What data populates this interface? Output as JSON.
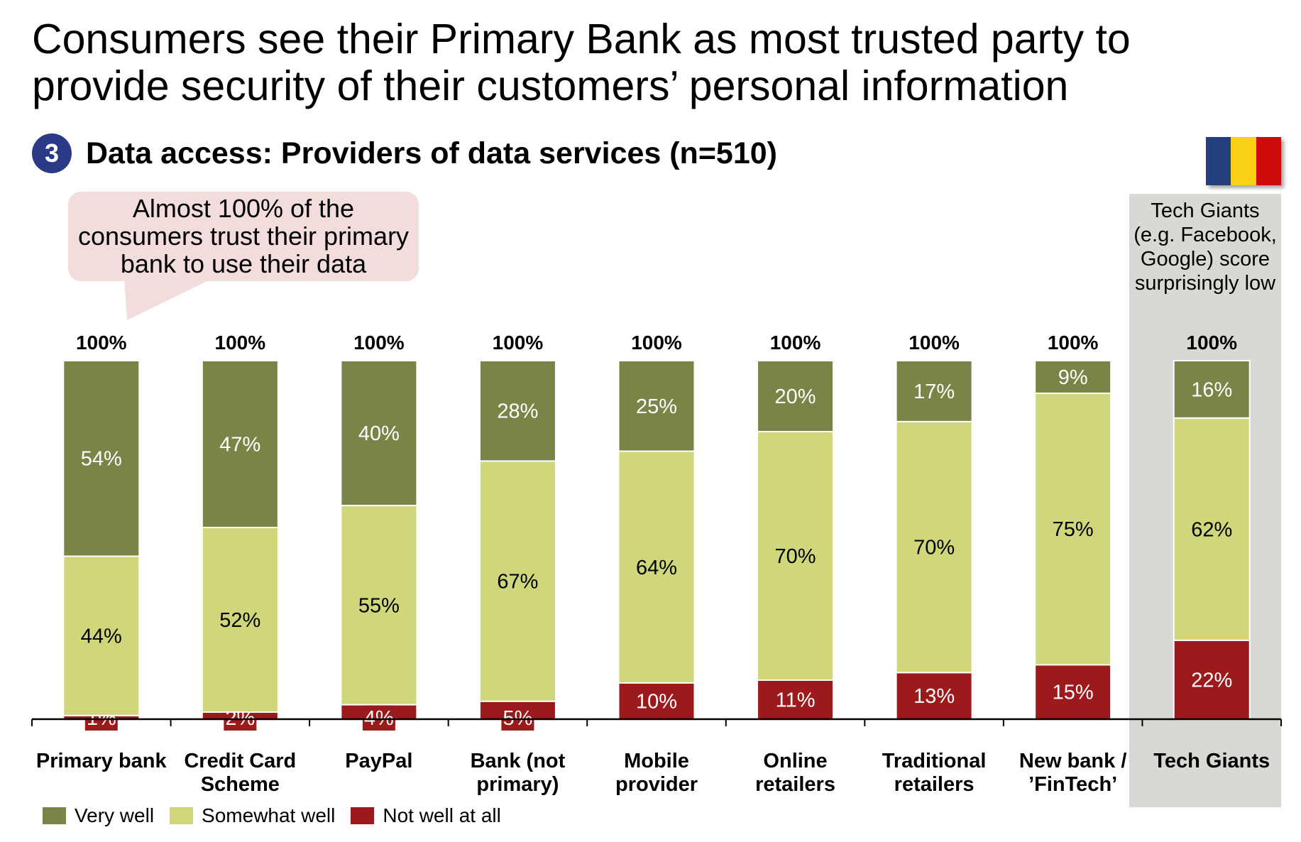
{
  "title": "Consumers see their Primary Bank as most trusted party to provide security of their customers’ personal information",
  "subtitle": {
    "number": "3",
    "text": "Data access: Providers of data services (n=510)"
  },
  "callout": "Almost 100% of the consumers trust their primary bank to use their data",
  "panel_note": "Tech Giants (e.g. Facebook, Google) score surprisingly low",
  "flag_colors": [
    "#233f7c",
    "#fcd116",
    "#ce0a0a"
  ],
  "chart_data": {
    "type": "bar",
    "stacked": true,
    "categories": [
      "Primary bank",
      "Credit Card Scheme",
      "PayPal",
      "Bank (not primary)",
      "Mobile provider",
      "Online retailers",
      "Traditional retailers",
      "New bank / ’FinTech’",
      "Tech Giants"
    ],
    "totals": [
      "100%",
      "100%",
      "100%",
      "100%",
      "100%",
      "100%",
      "100%",
      "100%",
      "100%"
    ],
    "series": [
      {
        "name": "Very well",
        "color": "#7a8446",
        "values": [
          54,
          47,
          40,
          28,
          25,
          20,
          17,
          9,
          16
        ]
      },
      {
        "name": "Somewhat well",
        "color": "#cfd77a",
        "values": [
          44,
          52,
          55,
          67,
          64,
          70,
          70,
          75,
          62
        ]
      },
      {
        "name": "Not well at all",
        "color": "#9c1a1c",
        "values": [
          1,
          2,
          4,
          5,
          10,
          11,
          13,
          15,
          22
        ]
      }
    ],
    "unit": "%",
    "ylim": [
      0,
      100
    ],
    "grid": false,
    "legend": "bottom-left",
    "highlighted_category": "Tech Giants"
  }
}
